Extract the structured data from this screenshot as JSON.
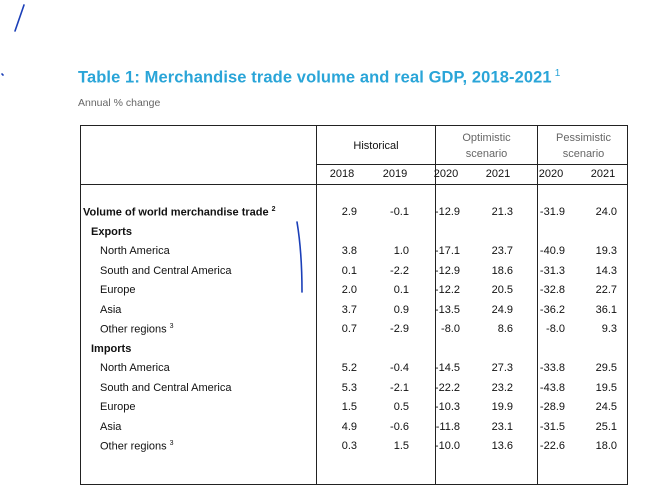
{
  "title": "Table 1: Merchandise trade volume and real GDP, 2018-2021",
  "title_note": "1",
  "subtitle": "Annual % change",
  "groups": {
    "historical": "Historical",
    "optimistic": "Optimistic scenario",
    "pessimistic": "Pessimistic scenario"
  },
  "years": [
    "2018",
    "2019",
    "2020",
    "2021",
    "2020",
    "2021"
  ],
  "rows": [
    {
      "label": "Volume of world merchandise trade",
      "note": "2",
      "bold": true,
      "indent": 0,
      "values": [
        "2.9",
        "-0.1",
        "-12.9",
        "21.3",
        "-31.9",
        "24.0"
      ]
    },
    {
      "label": "Exports",
      "note": "",
      "bold": true,
      "indent": 1,
      "values": [
        "",
        "",
        "",
        "",
        "",
        ""
      ]
    },
    {
      "label": "North America",
      "note": "",
      "bold": false,
      "indent": 2,
      "values": [
        "3.8",
        "1.0",
        "-17.1",
        "23.7",
        "-40.9",
        "19.3"
      ]
    },
    {
      "label": "South and Central America",
      "note": "",
      "bold": false,
      "indent": 2,
      "values": [
        "0.1",
        "-2.2",
        "-12.9",
        "18.6",
        "-31.3",
        "14.3"
      ]
    },
    {
      "label": "Europe",
      "note": "",
      "bold": false,
      "indent": 2,
      "values": [
        "2.0",
        "0.1",
        "-12.2",
        "20.5",
        "-32.8",
        "22.7"
      ]
    },
    {
      "label": "Asia",
      "note": "",
      "bold": false,
      "indent": 2,
      "values": [
        "3.7",
        "0.9",
        "-13.5",
        "24.9",
        "-36.2",
        "36.1"
      ]
    },
    {
      "label": "Other regions",
      "note": "3",
      "bold": false,
      "indent": 2,
      "values": [
        "0.7",
        "-2.9",
        "-8.0",
        "8.6",
        "-8.0",
        "9.3"
      ]
    },
    {
      "label": "Imports",
      "note": "",
      "bold": true,
      "indent": 1,
      "values": [
        "",
        "",
        "",
        "",
        "",
        ""
      ]
    },
    {
      "label": "North America",
      "note": "",
      "bold": false,
      "indent": 2,
      "values": [
        "5.2",
        "-0.4",
        "-14.5",
        "27.3",
        "-33.8",
        "29.5"
      ]
    },
    {
      "label": "South and Central America",
      "note": "",
      "bold": false,
      "indent": 2,
      "values": [
        "5.3",
        "-2.1",
        "-22.2",
        "23.2",
        "-43.8",
        "19.5"
      ]
    },
    {
      "label": "Europe",
      "note": "",
      "bold": false,
      "indent": 2,
      "values": [
        "1.5",
        "0.5",
        "-10.3",
        "19.9",
        "-28.9",
        "24.5"
      ]
    },
    {
      "label": "Asia",
      "note": "",
      "bold": false,
      "indent": 2,
      "values": [
        "4.9",
        "-0.6",
        "-11.8",
        "23.1",
        "-31.5",
        "25.1"
      ]
    },
    {
      "label": "Other regions",
      "note": "3",
      "bold": false,
      "indent": 2,
      "values": [
        "0.3",
        "1.5",
        "-10.0",
        "13.6",
        "-22.6",
        "18.0"
      ]
    }
  ],
  "colors": {
    "title": "#2aa5d8",
    "annotation": "#1b3fb8",
    "muted": "#666666"
  }
}
